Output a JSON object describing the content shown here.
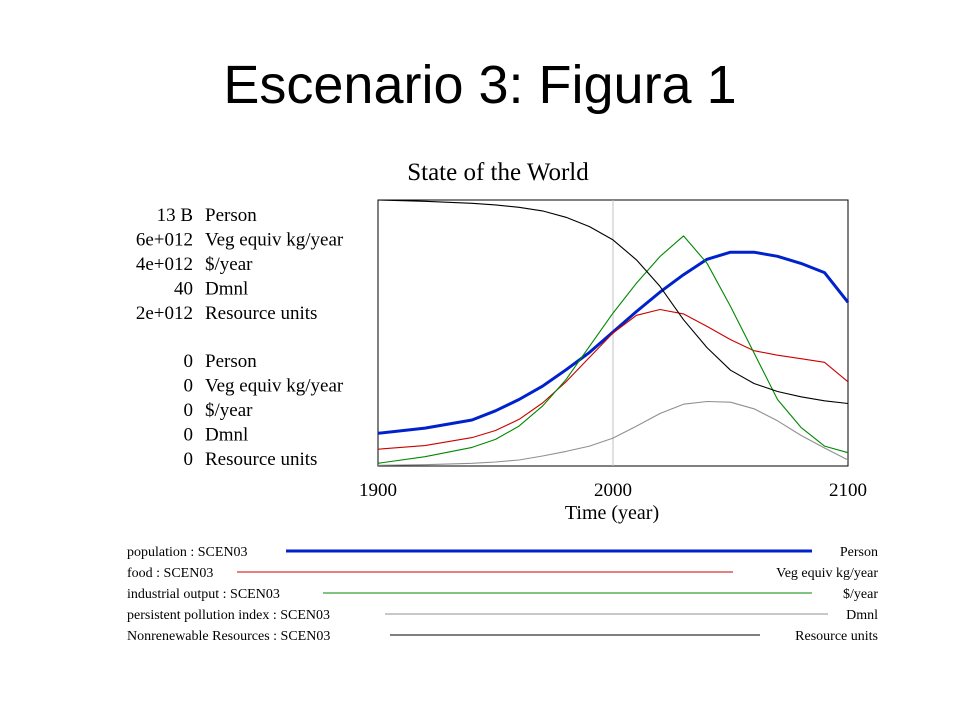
{
  "slide": {
    "title": "Escenario 3: Figura 1"
  },
  "chart_data": {
    "type": "line",
    "title": "State of the World",
    "xlabel": "Time (year)",
    "xlim": [
      1900,
      2100
    ],
    "x_ticks": [
      "1900",
      "2000",
      "2100"
    ],
    "vline": 2000,
    "grid": false,
    "axis_labels_top": [
      {
        "value": "13 B",
        "unit": "Person"
      },
      {
        "value": "6e+012",
        "unit": "Veg equiv kg/year"
      },
      {
        "value": "4e+012",
        "unit": "$/year"
      },
      {
        "value": "40",
        "unit": "Dmnl"
      },
      {
        "value": "2e+012",
        "unit": "Resource units"
      }
    ],
    "axis_labels_bottom": [
      {
        "value": "0",
        "unit": "Person"
      },
      {
        "value": "0",
        "unit": "Veg equiv kg/year"
      },
      {
        "value": "0",
        "unit": "$/year"
      },
      {
        "value": "0",
        "unit": "Dmnl"
      },
      {
        "value": "0",
        "unit": "Resource units"
      }
    ],
    "series": [
      {
        "name": "population : SCEN03",
        "unit": "Person",
        "color": "#0022cc",
        "thick": true,
        "ylim": [
          0,
          13000000000
        ],
        "x": [
          1900,
          1920,
          1940,
          1950,
          1960,
          1970,
          1980,
          1990,
          2000,
          2010,
          2020,
          2030,
          2040,
          2050,
          2060,
          2070,
          2080,
          2090,
          2100
        ],
        "y": [
          1600000000,
          1850000000,
          2250000000,
          2700000000,
          3250000000,
          3900000000,
          4700000000,
          5550000000,
          6550000000,
          7550000000,
          8500000000,
          9350000000,
          10100000000,
          10450000000,
          10450000000,
          10250000000,
          9900000000,
          9450000000,
          8000000000
        ]
      },
      {
        "name": "food : SCEN03",
        "unit": "Veg equiv kg/year",
        "color": "#cc0000",
        "thick": false,
        "ylim": [
          0,
          6000000000000
        ],
        "x": [
          1900,
          1920,
          1940,
          1950,
          1960,
          1970,
          1980,
          1990,
          2000,
          2010,
          2020,
          2030,
          2040,
          2050,
          2060,
          2070,
          2080,
          2090,
          2100
        ],
        "y": [
          380000000000,
          460000000000,
          640000000000,
          800000000000,
          1050000000000,
          1420000000000,
          1900000000000,
          2450000000000,
          3000000000000,
          3400000000000,
          3530000000000,
          3430000000000,
          3150000000000,
          2850000000000,
          2600000000000,
          2500000000000,
          2420000000000,
          2340000000000,
          1900000000000
        ]
      },
      {
        "name": "industrial output : SCEN03",
        "unit": "$/year",
        "color": "#008800",
        "thick": false,
        "ylim": [
          0,
          4000000000000
        ],
        "x": [
          1900,
          1920,
          1940,
          1950,
          1960,
          1970,
          1980,
          1990,
          2000,
          2010,
          2020,
          2030,
          2040,
          2050,
          2060,
          2070,
          2080,
          2090,
          2100
        ],
        "y": [
          40000000000,
          140000000000,
          280000000000,
          400000000000,
          600000000000,
          900000000000,
          1300000000000,
          1800000000000,
          2300000000000,
          2750000000000,
          3150000000000,
          3460000000000,
          3050000000000,
          2400000000000,
          1700000000000,
          1000000000000,
          580000000000,
          300000000000,
          200000000000
        ]
      },
      {
        "name": "persistent pollution index : SCEN03",
        "unit": "Dmnl",
        "color": "#909090",
        "thick": false,
        "ylim": [
          0,
          40
        ],
        "x": [
          1900,
          1920,
          1940,
          1950,
          1960,
          1970,
          1980,
          1990,
          2000,
          2010,
          2020,
          2030,
          2040,
          2050,
          2060,
          2070,
          2080,
          2090,
          2100
        ],
        "y": [
          0.1,
          0.2,
          0.4,
          0.6,
          0.9,
          1.5,
          2.2,
          3.0,
          4.2,
          6.0,
          7.9,
          9.3,
          9.7,
          9.6,
          8.6,
          6.8,
          4.6,
          2.7,
          0.9
        ]
      },
      {
        "name": "Nonrenewable Resources : SCEN03",
        "unit": "Resource units",
        "color": "#000000",
        "thick": false,
        "ylim": [
          0,
          2000000000000
        ],
        "x": [
          1900,
          1920,
          1940,
          1950,
          1960,
          1970,
          1980,
          1990,
          2000,
          2010,
          2020,
          2030,
          2040,
          2050,
          2060,
          2070,
          2080,
          2090,
          2100
        ],
        "y": [
          2000000000000,
          1990000000000,
          1975000000000,
          1963000000000,
          1945000000000,
          1918000000000,
          1870000000000,
          1800000000000,
          1700000000000,
          1550000000000,
          1350000000000,
          1100000000000,
          890000000000,
          720000000000,
          620000000000,
          560000000000,
          520000000000,
          490000000000,
          470000000000
        ]
      }
    ]
  }
}
